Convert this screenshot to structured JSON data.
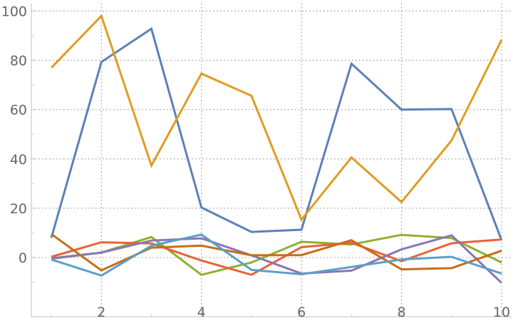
{
  "chart_data": {
    "type": "line",
    "x": [
      1,
      2,
      3,
      4,
      5,
      6,
      7,
      8,
      9,
      10
    ],
    "xlim": [
      0.6,
      10.2
    ],
    "ylim": [
      -24,
      103
    ],
    "x_ticks": [
      2,
      4,
      6,
      8,
      10
    ],
    "y_ticks": [
      0,
      20,
      40,
      60,
      80,
      100
    ],
    "x_tick_labels": [
      "2",
      "4",
      "6",
      "8",
      "10"
    ],
    "y_tick_labels": [
      "0",
      "20",
      "40",
      "60",
      "80",
      "100"
    ],
    "grid": true,
    "series": [
      {
        "color": "#5e81b5",
        "values": [
          8,
          79.3,
          92.8,
          20.3,
          10.4,
          11.3,
          78.6,
          60,
          60.2,
          7
        ]
      },
      {
        "color": "#e19c24",
        "values": [
          77,
          98,
          37.3,
          74.6,
          65.6,
          15.4,
          40.6,
          22.5,
          47.5,
          88.3
        ]
      },
      {
        "color": "#8fb032",
        "values": [
          -0.5,
          2,
          8.3,
          -7,
          -2,
          6.4,
          5.3,
          9.2,
          7.9,
          -2
        ]
      },
      {
        "color": "#eb6235",
        "values": [
          0.3,
          6.2,
          5.7,
          -1.2,
          -7,
          4.2,
          6,
          -1.5,
          5.8,
          7.3
        ]
      },
      {
        "color": "#8778b3",
        "values": [
          -0.3,
          2,
          6.9,
          7.8,
          0.9,
          -6.5,
          -5.3,
          3.3,
          9,
          -10.3
        ]
      },
      {
        "color": "#c56e1a",
        "values": [
          9.5,
          -5.2,
          4,
          4.8,
          0.9,
          1,
          7,
          -4.8,
          -4.3,
          2.8
        ]
      },
      {
        "color": "#5d9ec7",
        "values": [
          -0.8,
          -7.3,
          4.8,
          9.3,
          -5,
          -6.8,
          -3.8,
          -0.8,
          0.3,
          -6.5
        ]
      }
    ]
  }
}
